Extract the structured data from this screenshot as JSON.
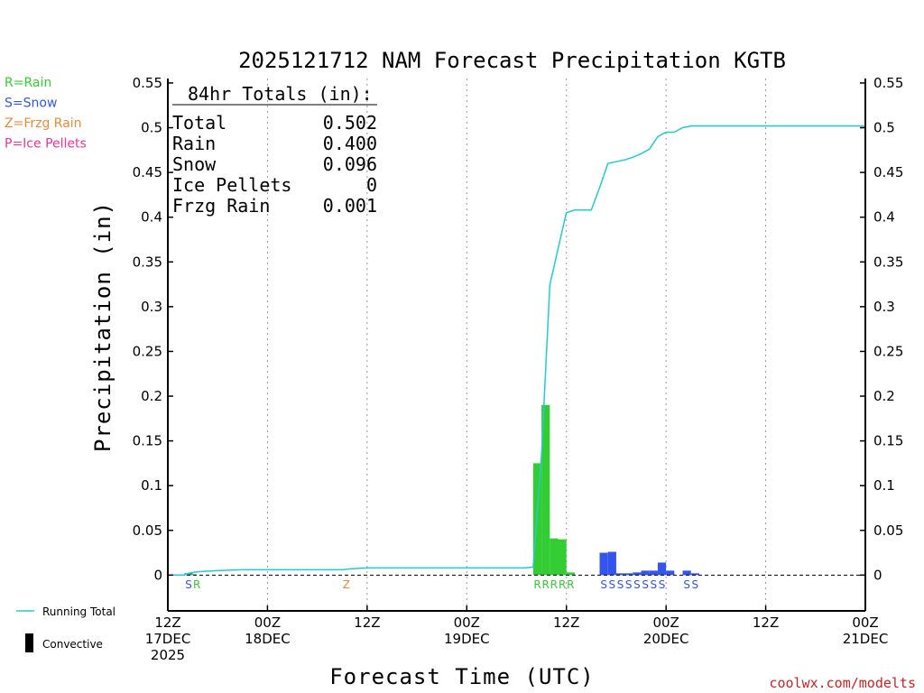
{
  "chart_data": {
    "type": "bar",
    "title": "2025121712 NAM Forecast Precipitation KGTB",
    "xlabel": "Forecast Time (UTC)",
    "ylabel": "Precipitation (in)",
    "ylim": [
      -0.04,
      0.555
    ],
    "yticks": [
      0,
      0.05,
      0.1,
      0.15,
      0.2,
      0.25,
      0.3,
      0.35,
      0.4,
      0.45,
      0.5,
      0.55
    ],
    "ytick_labels": [
      "0",
      "0.05",
      "0.1",
      "0.15",
      "0.2",
      "0.25",
      "0.3",
      "0.35",
      "0.4",
      "0.45",
      "0.5",
      "0.55"
    ],
    "xlim_hours": [
      0,
      84
    ],
    "xticks": [
      {
        "hour": 0,
        "lines": [
          "12Z",
          "17DEC",
          "2025"
        ]
      },
      {
        "hour": 12,
        "lines": [
          "00Z",
          "18DEC"
        ]
      },
      {
        "hour": 24,
        "lines": [
          "12Z"
        ]
      },
      {
        "hour": 36,
        "lines": [
          "00Z",
          "19DEC"
        ]
      },
      {
        "hour": 48,
        "lines": [
          "12Z"
        ]
      },
      {
        "hour": 60,
        "lines": [
          "00Z",
          "20DEC"
        ]
      },
      {
        "hour": 72,
        "lines": [
          "12Z"
        ]
      },
      {
        "hour": 84,
        "lines": [
          "00Z",
          "21DEC"
        ]
      }
    ],
    "totals": {
      "header": "84hr Totals (in):",
      "rows": [
        {
          "label": "Total",
          "value": "0.502"
        },
        {
          "label": "Rain",
          "value": "0.400"
        },
        {
          "label": "Snow",
          "value": "0.096"
        },
        {
          "label": "Ice Pellets",
          "value": "0"
        },
        {
          "label": "Frzg Rain",
          "value": "0.001"
        }
      ]
    },
    "ptype_legend": [
      {
        "text": "R=Rain",
        "color": "#33cc33"
      },
      {
        "text": "S=Snow",
        "color": "#3355ee"
      },
      {
        "text": "Z=Frzg Rain",
        "color": "#ee8833"
      },
      {
        "text": "P=Ice Pellets",
        "color": "#ee3399"
      }
    ],
    "series_legend": [
      {
        "text": "Running Total",
        "color": "#22cccc"
      },
      {
        "text": "Convective",
        "color": "#000000"
      }
    ],
    "bars": [
      {
        "hour": 2.5,
        "value": 0.002,
        "color": "#3355ee"
      },
      {
        "hour": 3.0,
        "value": 0.001,
        "color": "#33cc33"
      },
      {
        "hour": 44.5,
        "value": 0.125,
        "color": "#33cc33"
      },
      {
        "hour": 45.5,
        "value": 0.19,
        "color": "#33cc33"
      },
      {
        "hour": 46.5,
        "value": 0.041,
        "color": "#33cc33"
      },
      {
        "hour": 47.5,
        "value": 0.04,
        "color": "#33cc33"
      },
      {
        "hour": 48.5,
        "value": 0.003,
        "color": "#33cc33"
      },
      {
        "hour": 52.5,
        "value": 0.025,
        "color": "#3355ee"
      },
      {
        "hour": 53.5,
        "value": 0.026,
        "color": "#3355ee"
      },
      {
        "hour": 54.5,
        "value": 0.002,
        "color": "#3355ee"
      },
      {
        "hour": 55.5,
        "value": 0.002,
        "color": "#3355ee"
      },
      {
        "hour": 56.5,
        "value": 0.003,
        "color": "#3355ee"
      },
      {
        "hour": 57.5,
        "value": 0.005,
        "color": "#3355ee"
      },
      {
        "hour": 58.5,
        "value": 0.005,
        "color": "#3355ee"
      },
      {
        "hour": 59.5,
        "value": 0.014,
        "color": "#3355ee"
      },
      {
        "hour": 60.5,
        "value": 0.005,
        "color": "#3355ee"
      },
      {
        "hour": 62.5,
        "value": 0.005,
        "color": "#3355ee"
      },
      {
        "hour": 63.5,
        "value": 0.002,
        "color": "#3355ee"
      }
    ],
    "running_total": {
      "name": "Running Total",
      "color": "#22cccc",
      "x": [
        0,
        1,
        2,
        2.5,
        3,
        4,
        6,
        9,
        12,
        15,
        18,
        21,
        22,
        24,
        30,
        36,
        42,
        43,
        44,
        45,
        46,
        47,
        48,
        49,
        50,
        51,
        52,
        53,
        54,
        55,
        56,
        57,
        58,
        59,
        60,
        61,
        62,
        63,
        64,
        65,
        70,
        75,
        80,
        84
      ],
      "y": [
        0,
        0,
        0,
        0.002,
        0.003,
        0.004,
        0.005,
        0.006,
        0.006,
        0.006,
        0.006,
        0.006,
        0.007,
        0.008,
        0.008,
        0.008,
        0.008,
        0.008,
        0.009,
        0.134,
        0.324,
        0.365,
        0.405,
        0.408,
        0.408,
        0.408,
        0.433,
        0.46,
        0.462,
        0.464,
        0.467,
        0.471,
        0.476,
        0.49,
        0.495,
        0.495,
        0.5,
        0.502,
        0.502,
        0.502,
        0.502,
        0.502,
        0.502,
        0.502
      ]
    },
    "ptype_labels": [
      {
        "hour": 2.5,
        "text": "S",
        "color": "#3355ee"
      },
      {
        "hour": 3.5,
        "text": "R",
        "color": "#33cc33"
      },
      {
        "hour": 21.5,
        "text": "Z",
        "color": "#ee8833"
      },
      {
        "hour": 44.5,
        "text": "R",
        "color": "#33cc33"
      },
      {
        "hour": 45.5,
        "text": "R",
        "color": "#33cc33"
      },
      {
        "hour": 46.5,
        "text": "R",
        "color": "#33cc33"
      },
      {
        "hour": 47.5,
        "text": "R",
        "color": "#33cc33"
      },
      {
        "hour": 48.5,
        "text": "R",
        "color": "#33cc33"
      },
      {
        "hour": 52.5,
        "text": "S",
        "color": "#3355ee"
      },
      {
        "hour": 53.5,
        "text": "S",
        "color": "#3355ee"
      },
      {
        "hour": 54.5,
        "text": "S",
        "color": "#3355ee"
      },
      {
        "hour": 55.5,
        "text": "S",
        "color": "#3355ee"
      },
      {
        "hour": 56.5,
        "text": "S",
        "color": "#3355ee"
      },
      {
        "hour": 57.5,
        "text": "S",
        "color": "#3355ee"
      },
      {
        "hour": 58.5,
        "text": "S",
        "color": "#3355ee"
      },
      {
        "hour": 59.5,
        "text": "S",
        "color": "#3355ee"
      },
      {
        "hour": 62.5,
        "text": "S",
        "color": "#3355ee"
      },
      {
        "hour": 63.5,
        "text": "S",
        "color": "#3355ee"
      }
    ],
    "grid": true,
    "credit": "coolwx.com/modelts",
    "credit_color": "#cc2222"
  }
}
